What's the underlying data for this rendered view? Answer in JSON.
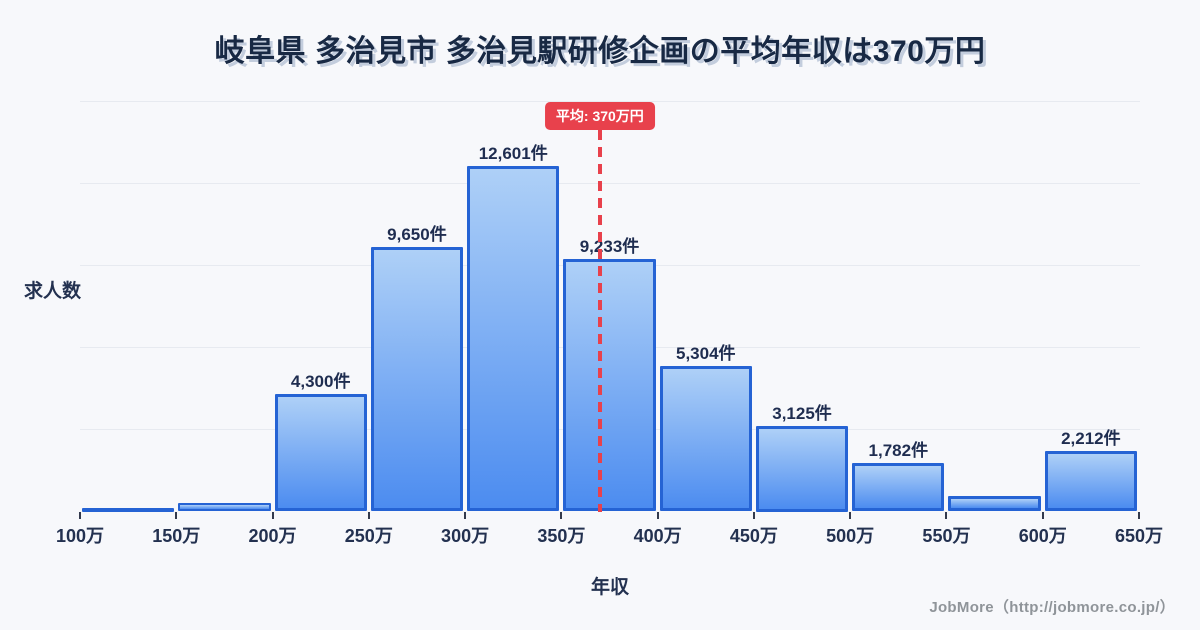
{
  "page": {
    "background": "#f7f8fb",
    "footer": "JobMore（http://jobmore.co.jp/）"
  },
  "chart_data": {
    "type": "bar",
    "subtype": "histogram",
    "title": "岐阜県 多治見市 多治見駅研修企画の平均年収は370万円",
    "xlabel": "年収",
    "ylabel": "求人数",
    "x_tick_labels": [
      "100万",
      "150万",
      "200万",
      "250万",
      "300万",
      "350万",
      "400万",
      "450万",
      "500万",
      "550万",
      "600万",
      "650万"
    ],
    "bin_edges_man": [
      100,
      150,
      200,
      250,
      300,
      350,
      400,
      450,
      500,
      550,
      600,
      650
    ],
    "values": [
      120,
      320,
      4300,
      9650,
      12601,
      9233,
      5304,
      3125,
      1782,
      560,
      2212
    ],
    "bar_labels": [
      "",
      "",
      "4,300件",
      "9,650件",
      "12,601件",
      "9,233件",
      "5,304件",
      "3,125件",
      "1,782件",
      "",
      "2,212件"
    ],
    "average": {
      "value_man": 370,
      "badge_label": "平均: 370万円"
    },
    "ylim": [
      0,
      15000
    ],
    "grid_interval": 3000,
    "grid_on": true,
    "legend_position": "none",
    "colors": {
      "bar_fill_top": "#aed0f7",
      "bar_fill_bottom": "#4c8cf0",
      "bar_border": "#2563d4",
      "average_red": "#e8414c",
      "label_navy": "#1f2d50",
      "title_navy": "#182944",
      "title_shadow": "#c3cddd",
      "gridline": "#e7eaf0",
      "background": "#f7f8fb"
    }
  }
}
